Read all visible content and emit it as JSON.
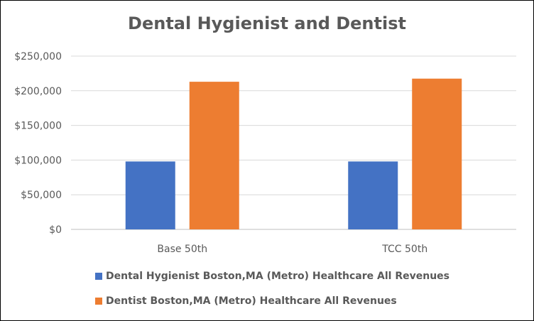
{
  "chart_data": {
    "type": "bar",
    "title": "Dental Hygienist and Dentist",
    "xlabel": "",
    "ylabel": "",
    "categories": [
      "Base 50th",
      "TCC 50th"
    ],
    "series": [
      {
        "name": "Dental Hygienist Boston,MA (Metro) Healthcare All Revenues",
        "color": "#4472C4",
        "values": [
          98000,
          98000
        ]
      },
      {
        "name": "Dentist Boston,MA (Metro) Healthcare All Revenues",
        "color": "#ED7D31",
        "values": [
          213000,
          217500
        ]
      }
    ],
    "ylim": [
      0,
      250000
    ],
    "yticks": [
      "$0",
      "$50,000",
      "$100,000",
      "$150,000",
      "$200,000",
      "$250,000"
    ],
    "grid": true,
    "legend_position": "bottom"
  }
}
